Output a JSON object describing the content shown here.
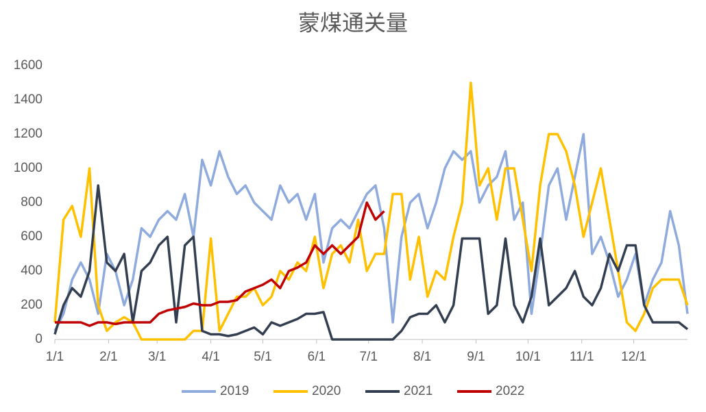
{
  "chart_data": {
    "type": "line",
    "title": "蒙煤通关量",
    "x": [
      0,
      5,
      10,
      15,
      20,
      25,
      30,
      35,
      40,
      45,
      50,
      55,
      60,
      65,
      70,
      75,
      80,
      85,
      90,
      95,
      100,
      105,
      110,
      115,
      120,
      125,
      130,
      135,
      140,
      145,
      150,
      155,
      160,
      165,
      170,
      175,
      180,
      185,
      190,
      195,
      200,
      205,
      210,
      215,
      220,
      225,
      230,
      235,
      240,
      245,
      250,
      255,
      260,
      265,
      270,
      275,
      280,
      285,
      290,
      295,
      300,
      305,
      310,
      315,
      320,
      325,
      330,
      335,
      340,
      345,
      350,
      355,
      360,
      365
    ],
    "xlim": [
      0,
      365
    ],
    "xticks": [
      {
        "value": 0,
        "label": "1/1"
      },
      {
        "value": 31,
        "label": "2/1"
      },
      {
        "value": 59,
        "label": "3/1"
      },
      {
        "value": 90,
        "label": "4/1"
      },
      {
        "value": 120,
        "label": "5/1"
      },
      {
        "value": 151,
        "label": "6/1"
      },
      {
        "value": 181,
        "label": "7/1"
      },
      {
        "value": 212,
        "label": "8/1"
      },
      {
        "value": 243,
        "label": "9/1"
      },
      {
        "value": 273,
        "label": "10/1"
      },
      {
        "value": 304,
        "label": "11/1"
      },
      {
        "value": 334,
        "label": "12/1"
      }
    ],
    "ylim": [
      0,
      1600
    ],
    "yticks": [
      0,
      200,
      400,
      600,
      800,
      1000,
      1200,
      1400,
      1600
    ],
    "legend": "bottom",
    "series": [
      {
        "name": "2019",
        "color": "#8faadc",
        "values": [
          50,
          150,
          350,
          450,
          350,
          150,
          500,
          400,
          200,
          350,
          650,
          600,
          700,
          750,
          700,
          850,
          600,
          1050,
          900,
          1100,
          950,
          850,
          900,
          800,
          750,
          700,
          900,
          800,
          850,
          700,
          850,
          450,
          650,
          700,
          650,
          750,
          850,
          900,
          650,
          100,
          600,
          800,
          850,
          650,
          800,
          1000,
          1100,
          1050,
          1100,
          800,
          900,
          950,
          1100,
          700,
          800,
          150,
          500,
          900,
          1000,
          700,
          950,
          1200,
          500,
          600,
          450,
          250,
          350,
          500,
          200,
          350,
          450,
          750,
          550,
          150
        ]
      },
      {
        "name": "2020",
        "color": "#ffc000",
        "values": [
          100,
          700,
          780,
          600,
          1000,
          200,
          50,
          100,
          130,
          100,
          0,
          0,
          0,
          0,
          0,
          0,
          50,
          50,
          590,
          50,
          150,
          250,
          250,
          300,
          200,
          250,
          400,
          350,
          450,
          400,
          600,
          300,
          500,
          550,
          450,
          700,
          400,
          500,
          500,
          850,
          850,
          350,
          600,
          250,
          400,
          350,
          600,
          800,
          1500,
          900,
          1000,
          700,
          1000,
          1000,
          700,
          400,
          900,
          1200,
          1200,
          1100,
          900,
          600,
          800,
          1000,
          700,
          400,
          100,
          50,
          150,
          300,
          350,
          350,
          350,
          200
        ]
      },
      {
        "name": "2021",
        "color": "#333f50",
        "values": [
          30,
          200,
          300,
          250,
          400,
          900,
          450,
          400,
          500,
          100,
          400,
          450,
          550,
          600,
          100,
          550,
          600,
          50,
          30,
          30,
          20,
          30,
          50,
          70,
          30,
          100,
          80,
          100,
          120,
          150,
          150,
          160,
          0,
          0,
          0,
          0,
          0,
          0,
          0,
          0,
          50,
          130,
          150,
          150,
          200,
          100,
          200,
          590,
          590,
          590,
          150,
          200,
          590,
          200,
          100,
          250,
          590,
          200,
          250,
          300,
          400,
          250,
          200,
          300,
          500,
          400,
          550,
          550,
          200,
          100,
          100,
          100,
          100,
          60
        ]
      },
      {
        "name": "2022",
        "color": "#c00000",
        "values": [
          100,
          100,
          100,
          100,
          80,
          100,
          100,
          90,
          100,
          100,
          100,
          100,
          150,
          170,
          180,
          190,
          210,
          200,
          200,
          220,
          220,
          230,
          280,
          300,
          320,
          350,
          300,
          400,
          420,
          450,
          550,
          500,
          550,
          500,
          550,
          600,
          800,
          700,
          750,
          null,
          null,
          null,
          null,
          null,
          null,
          null,
          null,
          null,
          null,
          null,
          null,
          null,
          null,
          null,
          null,
          null,
          null,
          null,
          null,
          null,
          null,
          null,
          null,
          null,
          null,
          null,
          null,
          null,
          null,
          null,
          null,
          null,
          null,
          null
        ]
      }
    ]
  }
}
